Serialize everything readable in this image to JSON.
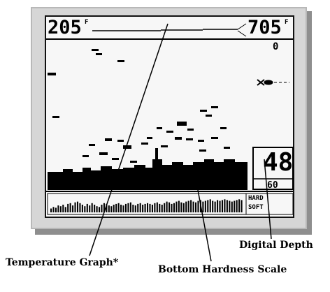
{
  "temperature": {
    "left_value": "205",
    "left_unit": "F",
    "right_value": "705",
    "right_unit": "F"
  },
  "depth": {
    "range_top": "0",
    "current": "48",
    "range_bottom": "60"
  },
  "hardness_scale": {
    "hard_label": "HARD",
    "soft_label": "SOFT",
    "levels": [
      0.25,
      0.35,
      0.3,
      0.45,
      0.4,
      0.5,
      0.35,
      0.55,
      0.6,
      0.45,
      0.65,
      0.7,
      0.6,
      0.5,
      0.4,
      0.55,
      0.45,
      0.6,
      0.5,
      0.4,
      0.35,
      0.5,
      0.6,
      0.55,
      0.45,
      0.4,
      0.5,
      0.55,
      0.6,
      0.5,
      0.45,
      0.55,
      0.6,
      0.65,
      0.5,
      0.45,
      0.55,
      0.6,
      0.5,
      0.55,
      0.6,
      0.55,
      0.5,
      0.6,
      0.65,
      0.55,
      0.5,
      0.6,
      0.7,
      0.65,
      0.55,
      0.6,
      0.7,
      0.75,
      0.65,
      0.6,
      0.7,
      0.75,
      0.8,
      0.7,
      0.65,
      0.75,
      0.8,
      0.7,
      0.75,
      0.8,
      0.85,
      0.75,
      0.7,
      0.8,
      0.75,
      0.8,
      0.85,
      0.8,
      0.75,
      0.7,
      0.75,
      0.8,
      0.85,
      0.8
    ]
  },
  "callouts": {
    "temperature_graph": "Temperature Graph*",
    "bottom_hardness_scale": "Bottom Hardness Scale",
    "digital_depth": "Digital Depth"
  }
}
